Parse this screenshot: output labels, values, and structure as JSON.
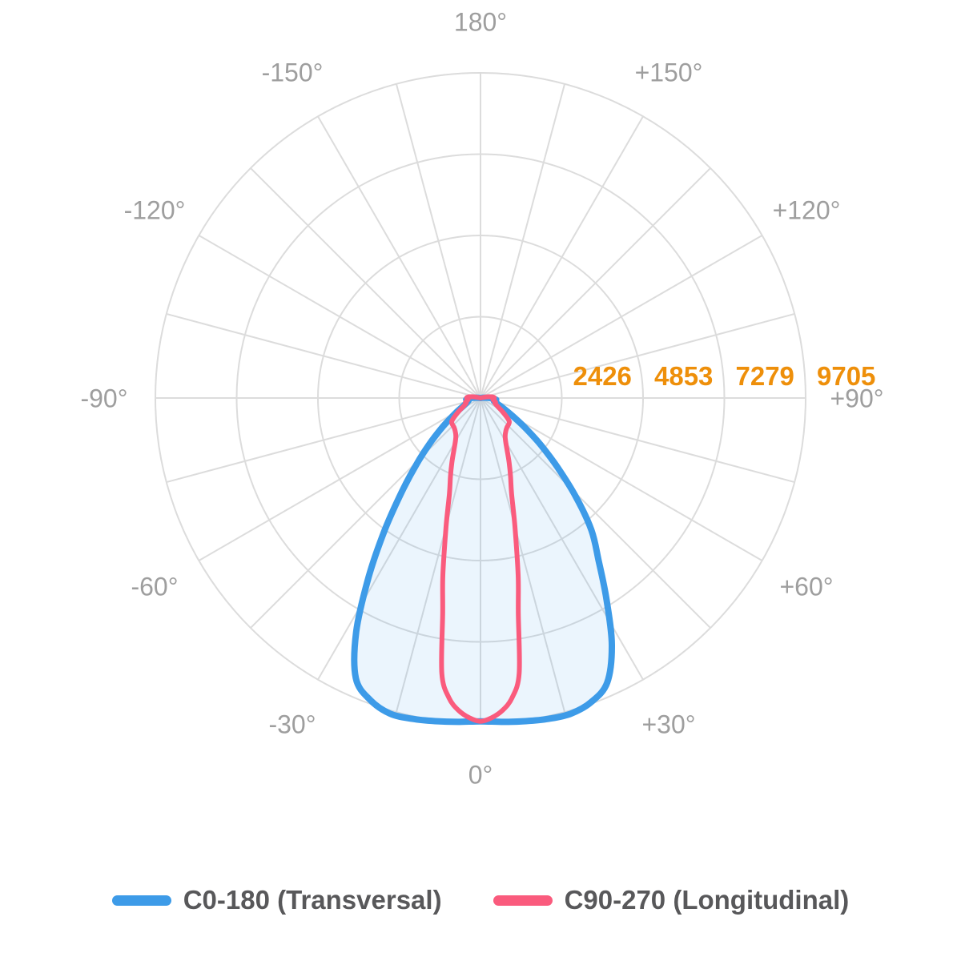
{
  "chart_data": {
    "type": "polar_photometric_curve",
    "title": "",
    "radial_axis": {
      "max": 9705,
      "ticks": [
        2426,
        4853,
        7279,
        9705
      ],
      "tick_labels": [
        "2426",
        "4853",
        "7279",
        "9705"
      ],
      "tick_color": "#ee8f0a"
    },
    "angle_axis": {
      "label_step_deg": 30,
      "spoke_step_deg": 15,
      "labels": [
        {
          "angle": 0,
          "label": "0°"
        },
        {
          "angle": 30,
          "label": "+30°"
        },
        {
          "angle": 60,
          "label": "+60°"
        },
        {
          "angle": 90,
          "label": "+90°"
        },
        {
          "angle": 120,
          "label": "+120°"
        },
        {
          "angle": 150,
          "label": "+150°"
        },
        {
          "angle": 180,
          "label": "180°"
        },
        {
          "angle": -30,
          "label": "-30°"
        },
        {
          "angle": -60,
          "label": "-60°"
        },
        {
          "angle": -90,
          "label": "-90°"
        },
        {
          "angle": -120,
          "label": "-120°"
        },
        {
          "angle": -150,
          "label": "-150°"
        }
      ],
      "label_color": "#9e9e9e"
    },
    "grid": {
      "rings": 4,
      "color": "#dcdcdc"
    },
    "series": [
      {
        "name": "C0-180 (Transversal)",
        "color": "#3d9be8",
        "fill": "rgba(61,155,232,0.10)",
        "stroke_width": 8,
        "points": [
          [
            -102,
            0
          ],
          [
            -98,
            40
          ],
          [
            -94,
            145
          ],
          [
            -90,
            310
          ],
          [
            -87,
            370
          ],
          [
            -84,
            430
          ],
          [
            -81,
            380
          ],
          [
            -78,
            365
          ],
          [
            -74,
            400
          ],
          [
            -70,
            450
          ],
          [
            -65,
            570
          ],
          [
            -60,
            800
          ],
          [
            -56,
            1080
          ],
          [
            -52,
            1500
          ],
          [
            -48,
            2050
          ],
          [
            -44,
            2750
          ],
          [
            -40,
            3650
          ],
          [
            -36,
            4850
          ],
          [
            -32,
            6300
          ],
          [
            -28,
            7900
          ],
          [
            -24,
            9150
          ],
          [
            -20,
            9600
          ],
          [
            -16,
            9800
          ],
          [
            -12,
            9790
          ],
          [
            -8,
            9740
          ],
          [
            -4,
            9690
          ],
          [
            0,
            9650
          ],
          [
            4,
            9690
          ],
          [
            8,
            9740
          ],
          [
            12,
            9790
          ],
          [
            16,
            9800
          ],
          [
            20,
            9660
          ],
          [
            24,
            9300
          ],
          [
            28,
            8350
          ],
          [
            32,
            7100
          ],
          [
            36,
            6000
          ],
          [
            40,
            5150
          ],
          [
            44,
            4100
          ],
          [
            48,
            3100
          ],
          [
            52,
            2300
          ],
          [
            56,
            1650
          ],
          [
            60,
            1170
          ],
          [
            65,
            790
          ],
          [
            70,
            565
          ],
          [
            75,
            445
          ],
          [
            78,
            405
          ],
          [
            81,
            420
          ],
          [
            84,
            470
          ],
          [
            87,
            400
          ],
          [
            90,
            320
          ],
          [
            94,
            150
          ],
          [
            98,
            45
          ],
          [
            102,
            0
          ]
        ]
      },
      {
        "name": "C90-270 (Longitudinal)",
        "color": "#fa5b7d",
        "fill": "none",
        "stroke_width": 6,
        "points": [
          [
            -110,
            0
          ],
          [
            -106,
            40
          ],
          [
            -102,
            130
          ],
          [
            -98,
            270
          ],
          [
            -94,
            390
          ],
          [
            -90,
            410
          ],
          [
            -86,
            370
          ],
          [
            -82,
            380
          ],
          [
            -78,
            430
          ],
          [
            -74,
            470
          ],
          [
            -71,
            450
          ],
          [
            -67,
            500
          ],
          [
            -63,
            590
          ],
          [
            -59,
            740
          ],
          [
            -55,
            920
          ],
          [
            -51,
            1100
          ],
          [
            -47,
            1150
          ],
          [
            -42,
            1180
          ],
          [
            -37,
            1250
          ],
          [
            -33,
            1350
          ],
          [
            -30,
            1500
          ],
          [
            -27,
            1750
          ],
          [
            -24,
            2100
          ],
          [
            -21,
            2500
          ],
          [
            -18,
            3000
          ],
          [
            -15,
            3970
          ],
          [
            -12,
            5400
          ],
          [
            -10,
            6500
          ],
          [
            -8,
            8300
          ],
          [
            -6,
            9000
          ],
          [
            -4,
            9350
          ],
          [
            -2,
            9550
          ],
          [
            0,
            9650
          ],
          [
            2,
            9550
          ],
          [
            4,
            9350
          ],
          [
            6,
            9000
          ],
          [
            8,
            8300
          ],
          [
            10,
            6500
          ],
          [
            12,
            5400
          ],
          [
            15,
            3970
          ],
          [
            18,
            3000
          ],
          [
            21,
            2500
          ],
          [
            24,
            2100
          ],
          [
            27,
            1750
          ],
          [
            30,
            1500
          ],
          [
            33,
            1350
          ],
          [
            37,
            1250
          ],
          [
            42,
            1180
          ],
          [
            47,
            1150
          ],
          [
            51,
            1100
          ],
          [
            55,
            920
          ],
          [
            59,
            740
          ],
          [
            63,
            590
          ],
          [
            67,
            500
          ],
          [
            71,
            450
          ],
          [
            74,
            470
          ],
          [
            78,
            430
          ],
          [
            82,
            380
          ],
          [
            86,
            370
          ],
          [
            90,
            410
          ],
          [
            94,
            390
          ],
          [
            98,
            270
          ],
          [
            102,
            130
          ],
          [
            106,
            40
          ],
          [
            110,
            0
          ]
        ]
      }
    ]
  },
  "legend": {
    "items": [
      {
        "label": "C0-180 (Transversal)",
        "color": "#3d9be8"
      },
      {
        "label": "C90-270 (Longitudinal)",
        "color": "#fa5b7d"
      }
    ]
  }
}
